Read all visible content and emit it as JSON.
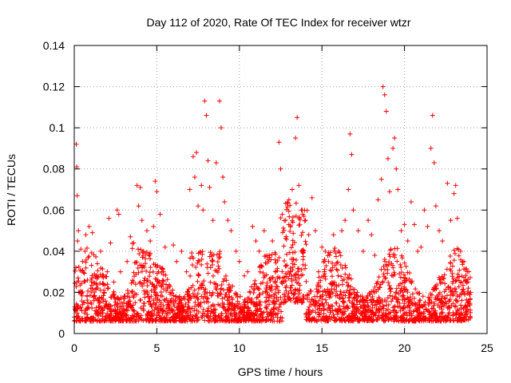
{
  "chart_data": {
    "type": "scatter",
    "title": "Day 112 of 2020, Rate Of TEC Index for receiver wtzr",
    "xlabel": "GPS time / hours",
    "ylabel": "ROTI / TECUs",
    "xlim": [
      0,
      25
    ],
    "ylim": [
      0,
      0.14
    ],
    "grid": true,
    "marker": "+",
    "marker_color": "#ff0000",
    "x_ticks": [
      {
        "value": 0,
        "label": "0"
      },
      {
        "value": 5,
        "label": "5"
      },
      {
        "value": 10,
        "label": "10"
      },
      {
        "value": 15,
        "label": "15"
      },
      {
        "value": 20,
        "label": "20"
      },
      {
        "value": 25,
        "label": "25"
      }
    ],
    "y_ticks": [
      {
        "value": 0,
        "label": "0"
      },
      {
        "value": 0.02,
        "label": "0.02"
      },
      {
        "value": 0.04,
        "label": "0.04"
      },
      {
        "value": 0.06,
        "label": "0.06"
      },
      {
        "value": 0.08,
        "label": "0.08"
      },
      {
        "value": 0.1,
        "label": "0.1"
      },
      {
        "value": 0.12,
        "label": "0.12"
      },
      {
        "value": 0.14,
        "label": "0.14"
      }
    ],
    "series": [
      {
        "name": "ROTI",
        "points": [
          [
            0.05,
            0.012
          ],
          [
            0.1,
            0.032
          ],
          [
            0.12,
            0.092
          ],
          [
            0.15,
            0.081
          ],
          [
            0.18,
            0.067
          ],
          [
            0.2,
            0.045
          ],
          [
            0.25,
            0.05
          ],
          [
            0.3,
            0.02
          ],
          [
            0.4,
            0.041
          ],
          [
            0.5,
            0.035
          ],
          [
            0.6,
            0.015
          ],
          [
            0.7,
            0.048
          ],
          [
            0.8,
            0.026
          ],
          [
            0.9,
            0.052
          ],
          [
            1.0,
            0.022
          ],
          [
            1.1,
            0.049
          ],
          [
            1.2,
            0.018
          ],
          [
            1.4,
            0.034
          ],
          [
            1.6,
            0.04
          ],
          [
            1.8,
            0.02
          ],
          [
            2.0,
            0.03
          ],
          [
            2.1,
            0.056
          ],
          [
            2.2,
            0.044
          ],
          [
            2.4,
            0.025
          ],
          [
            2.6,
            0.06
          ],
          [
            2.7,
            0.058
          ],
          [
            2.8,
            0.03
          ],
          [
            3.0,
            0.012
          ],
          [
            3.2,
            0.035
          ],
          [
            3.4,
            0.047
          ],
          [
            3.6,
            0.044
          ],
          [
            3.8,
            0.072
          ],
          [
            3.9,
            0.062
          ],
          [
            4.0,
            0.071
          ],
          [
            4.1,
            0.055
          ],
          [
            4.2,
            0.04
          ],
          [
            4.4,
            0.05
          ],
          [
            4.6,
            0.045
          ],
          [
            4.8,
            0.052
          ],
          [
            4.9,
            0.074
          ],
          [
            5.0,
            0.069
          ],
          [
            5.1,
            0.03
          ],
          [
            5.2,
            0.058
          ],
          [
            5.5,
            0.042
          ],
          [
            5.8,
            0.02
          ],
          [
            6.0,
            0.043
          ],
          [
            6.2,
            0.035
          ],
          [
            6.5,
            0.04
          ],
          [
            6.8,
            0.03
          ],
          [
            7.0,
            0.07
          ],
          [
            7.2,
            0.086
          ],
          [
            7.3,
            0.076
          ],
          [
            7.4,
            0.088
          ],
          [
            7.5,
            0.062
          ],
          [
            7.7,
            0.072
          ],
          [
            7.8,
            0.06
          ],
          [
            7.9,
            0.113
          ],
          [
            8.0,
            0.106
          ],
          [
            8.1,
            0.084
          ],
          [
            8.2,
            0.071
          ],
          [
            8.4,
            0.055
          ],
          [
            8.6,
            0.083
          ],
          [
            8.8,
            0.113
          ],
          [
            8.9,
            0.1
          ],
          [
            9.0,
            0.076
          ],
          [
            9.1,
            0.064
          ],
          [
            9.3,
            0.055
          ],
          [
            9.5,
            0.05
          ],
          [
            9.8,
            0.04
          ],
          [
            10.0,
            0.035
          ],
          [
            10.3,
            0.028
          ],
          [
            10.5,
            0.03
          ],
          [
            10.8,
            0.052
          ],
          [
            11.0,
            0.045
          ],
          [
            11.2,
            0.04
          ],
          [
            11.5,
            0.05
          ],
          [
            11.8,
            0.038
          ],
          [
            12.0,
            0.045
          ],
          [
            12.2,
            0.03
          ],
          [
            12.4,
            0.093
          ],
          [
            12.5,
            0.08
          ],
          [
            12.6,
            0.058
          ],
          [
            12.8,
            0.055
          ],
          [
            13.0,
            0.065
          ],
          [
            13.2,
            0.07
          ],
          [
            13.4,
            0.095
          ],
          [
            13.5,
            0.105
          ],
          [
            13.6,
            0.072
          ],
          [
            13.8,
            0.06
          ],
          [
            14.0,
            0.055
          ],
          [
            14.2,
            0.048
          ],
          [
            14.4,
            0.066
          ],
          [
            14.6,
            0.05
          ],
          [
            14.8,
            0.03
          ],
          [
            15.0,
            0.042
          ],
          [
            15.2,
            0.04
          ],
          [
            15.4,
            0.035
          ],
          [
            15.7,
            0.048
          ],
          [
            16.0,
            0.04
          ],
          [
            16.2,
            0.05
          ],
          [
            16.4,
            0.055
          ],
          [
            16.6,
            0.07
          ],
          [
            16.7,
            0.097
          ],
          [
            16.8,
            0.087
          ],
          [
            16.9,
            0.06
          ],
          [
            17.2,
            0.05
          ],
          [
            17.5,
            0.04
          ],
          [
            17.8,
            0.055
          ],
          [
            18.0,
            0.048
          ],
          [
            18.2,
            0.038
          ],
          [
            18.4,
            0.065
          ],
          [
            18.6,
            0.075
          ],
          [
            18.7,
            0.12
          ],
          [
            18.8,
            0.116
          ],
          [
            18.9,
            0.108
          ],
          [
            19.0,
            0.085
          ],
          [
            19.1,
            0.069
          ],
          [
            19.3,
            0.09
          ],
          [
            19.4,
            0.095
          ],
          [
            19.5,
            0.08
          ],
          [
            19.6,
            0.07
          ],
          [
            19.8,
            0.05
          ],
          [
            20.0,
            0.053
          ],
          [
            20.2,
            0.045
          ],
          [
            20.4,
            0.064
          ],
          [
            20.6,
            0.053
          ],
          [
            20.8,
            0.04
          ],
          [
            21.0,
            0.042
          ],
          [
            21.2,
            0.06
          ],
          [
            21.4,
            0.052
          ],
          [
            21.6,
            0.09
          ],
          [
            21.7,
            0.106
          ],
          [
            21.8,
            0.083
          ],
          [
            21.9,
            0.062
          ],
          [
            22.1,
            0.05
          ],
          [
            22.3,
            0.045
          ],
          [
            22.6,
            0.073
          ],
          [
            22.8,
            0.055
          ],
          [
            23.0,
            0.068
          ],
          [
            23.1,
            0.072
          ],
          [
            23.2,
            0.056
          ],
          [
            23.4,
            0.04
          ],
          [
            23.6,
            0.035
          ],
          [
            23.8,
            0.03
          ],
          [
            24.0,
            0.02
          ]
        ]
      }
    ],
    "band_note": "dense cloud of points roughly 0.005–0.035 TECU across all hours, higher (up to ~0.07) around 12.5–14 h"
  }
}
